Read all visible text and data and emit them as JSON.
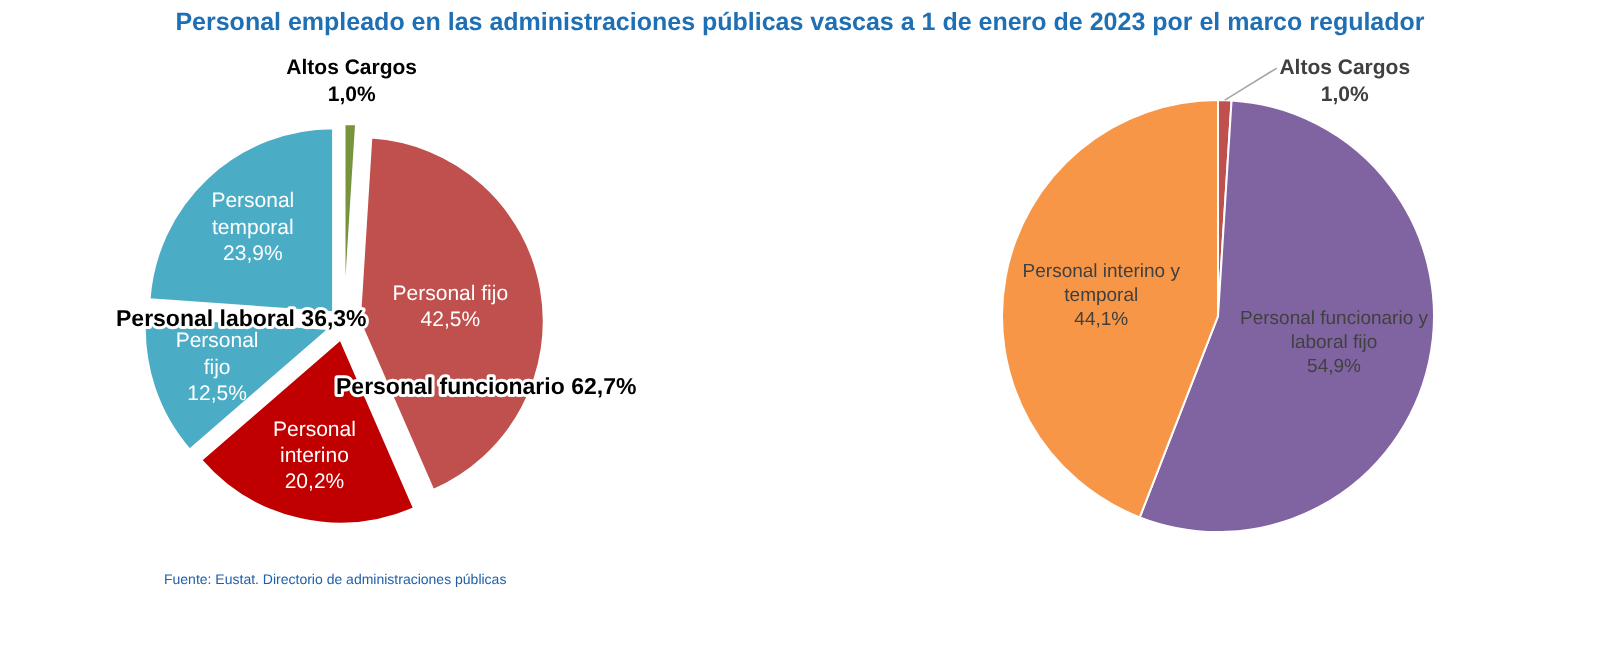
{
  "chart_data": [
    {
      "type": "pie",
      "title": "Personal empleado en las administraciones públicas vascas a 1 de enero de 2023 por el marco regulador",
      "categories": [
        "Altos Cargos",
        "Personal fijo",
        "Personal interino",
        "Personal fijo",
        "Personal temporal"
      ],
      "values": [
        1.0,
        42.5,
        20.2,
        12.5,
        23.9
      ],
      "value_labels": [
        "1,0%",
        "42,5%",
        "20,2%",
        "12,5%",
        "23,9%"
      ],
      "colors": [
        "#77933c",
        "#c0504d",
        "#c00000",
        "#4bacc6",
        "#4bacc6"
      ],
      "annotations": [
        "Personal laboral 36,3%",
        "Personal funcionario 62,7%",
        "Fuente: Eustat. Directorio de administraciones públicas"
      ]
    },
    {
      "type": "pie",
      "categories": [
        "Altos Cargos",
        "Personal funcionario y laboral fijo",
        "Personal interino y temporal"
      ],
      "values": [
        1.0,
        54.9,
        44.1
      ],
      "value_labels": [
        "1,0%",
        "54,9%",
        "44,1%"
      ],
      "colors": [
        "#c0504d",
        "#8064a2",
        "#f79646"
      ]
    }
  ]
}
